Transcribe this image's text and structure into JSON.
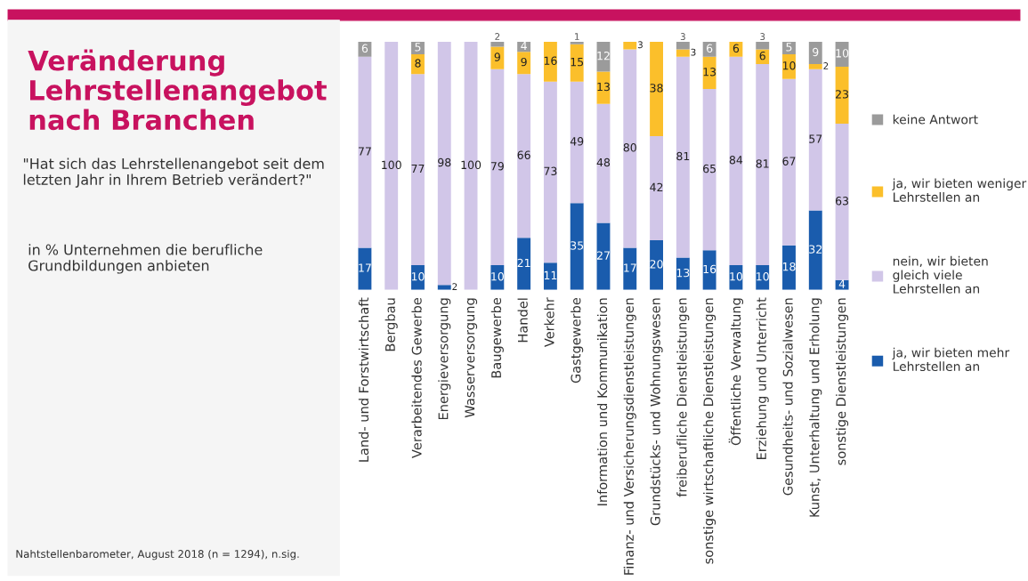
{
  "chart_data": {
    "type": "bar",
    "title": "Veränderung\nLehrstellenangebot\nnach Branchen",
    "subtitle": "\"Hat sich das Lehrstellenangebot seit dem\nletzten Jahr in Ihrem Betrieb verändert?\"",
    "annotations": [
      "in % Unternehmen die berufliche\nGrundbildungen anbieten",
      "Nahtstellenbarometer, August 2018 (n = 1294), n.sig."
    ],
    "categories": [
      "Land- und Forstwirtschaft",
      "Bergbau",
      "Verarbeitendes Gewerbe",
      "Energieversorgung",
      "Wasserversorgung",
      "Baugewerbe",
      "Handel",
      "Verkehr",
      "Gastgewerbe",
      "Information und Kommunikation",
      "Finanz- und Versicherungsdienstleistungen",
      "Grundstücks- und Wohnungswesen",
      "freiberufliche Dienstleistungen",
      "sonstige wirtschaftliche Dienstleistungen",
      "Öffentliche Verwaltung",
      "Erziehung und Unterricht",
      "Gesundheits- und Sozialwesen",
      "Kunst, Unterhaltung und Erholung",
      "sonstige Dienstleistungen"
    ],
    "stacked": true,
    "ylim": [
      0,
      100
    ],
    "tick_labels": "x",
    "legend": "right",
    "series": [
      {
        "name": "ja, wir bieten mehr\nLehrstellen an",
        "color": "#1a5cad",
        "values": [
          17,
          0,
          10,
          2,
          0,
          10,
          21,
          11,
          35,
          27,
          17,
          20,
          13,
          16,
          10,
          10,
          18,
          32,
          4
        ],
        "value_labels": [
          "17",
          null,
          "10",
          "2",
          null,
          "10",
          "21",
          "11",
          "35",
          "27",
          "17",
          "20",
          "13",
          "16",
          "10",
          "10",
          "18",
          "32",
          "4"
        ]
      },
      {
        "name": "nein, wir bieten\ngleich viele\nLehrstellen an",
        "color": "#d1c6e8",
        "values": [
          77,
          100,
          77,
          98,
          100,
          79,
          66,
          73,
          49,
          48,
          80,
          42,
          81,
          65,
          84,
          81,
          67,
          57,
          63
        ],
        "value_labels": [
          "77",
          "100",
          "77",
          "98",
          "100",
          "79",
          "66",
          "73",
          "49",
          "48",
          "80",
          "42",
          "81",
          "65",
          "84",
          "81",
          "67",
          "57",
          "63"
        ]
      },
      {
        "name": "ja, wir bieten weniger\nLehrstellen an",
        "color": "#fbbf2b",
        "values": [
          0,
          0,
          8,
          0,
          0,
          9,
          9,
          16,
          15,
          13,
          3,
          38,
          3,
          13,
          6,
          6,
          10,
          2,
          23
        ],
        "value_labels": [
          null,
          null,
          "8",
          null,
          null,
          "9",
          "9",
          "16",
          "15",
          "13",
          "3",
          "38",
          "3",
          "13",
          "6",
          "6",
          "10",
          "2",
          "23"
        ]
      },
      {
        "name": "keine Antwort",
        "color": "#9b9b9b",
        "values": [
          6,
          0,
          5,
          0,
          0,
          2,
          4,
          0,
          1,
          12,
          0,
          0,
          3,
          6,
          0,
          3,
          5,
          9,
          10
        ],
        "value_labels": [
          "6",
          null,
          "5",
          null,
          null,
          "2",
          "4",
          null,
          "1",
          "12",
          null,
          null,
          "3",
          "6",
          null,
          "3",
          "5",
          "9",
          "10"
        ]
      }
    ]
  }
}
